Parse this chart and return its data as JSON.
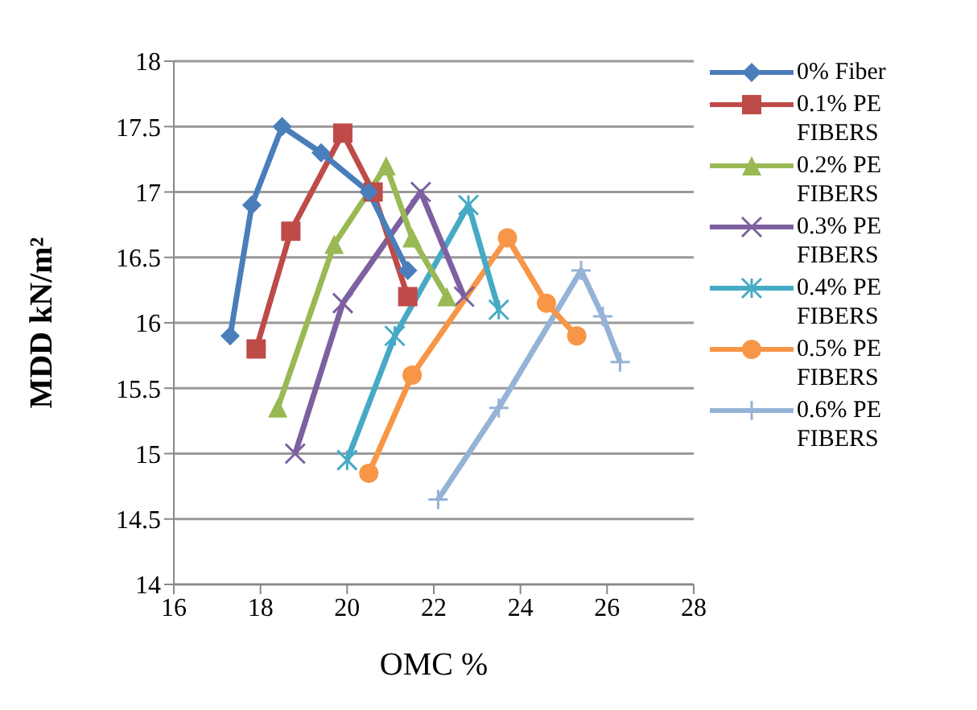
{
  "chart_data": {
    "type": "line",
    "xlabel": "OMC %",
    "ylabel": "MDD kN/m²",
    "xlim": [
      16,
      28
    ],
    "xticks": [
      16,
      18,
      20,
      22,
      24,
      26,
      28
    ],
    "ylim": [
      14,
      18
    ],
    "yticks": [
      14,
      14.5,
      15,
      15.5,
      16,
      16.5,
      17,
      17.5,
      18
    ],
    "grid": "y",
    "legend": "right",
    "series": [
      {
        "name": "0% Fiber",
        "color": "#4a7ebb",
        "marker": "diamond",
        "x": [
          17.3,
          17.8,
          18.5,
          19.4,
          20.5,
          21.4
        ],
        "values": [
          15.9,
          16.9,
          17.5,
          17.3,
          17.0,
          16.4
        ]
      },
      {
        "name": "0.1% PE FIBERS",
        "color": "#be4b48",
        "marker": "square",
        "x": [
          17.9,
          18.7,
          19.9,
          20.6,
          21.4
        ],
        "values": [
          15.8,
          16.7,
          17.45,
          17.0,
          16.2
        ]
      },
      {
        "name": "0.2% PE FIBERS",
        "color": "#98b954",
        "marker": "triangle",
        "x": [
          18.4,
          19.7,
          20.9,
          21.5,
          22.3
        ],
        "values": [
          15.35,
          16.6,
          17.2,
          16.65,
          16.2
        ]
      },
      {
        "name": "0.3% PE FIBERS",
        "color": "#7d60a0",
        "marker": "cross",
        "x": [
          18.8,
          19.9,
          21.7,
          22.7
        ],
        "values": [
          15.0,
          16.15,
          17.0,
          16.2
        ]
      },
      {
        "name": "0.4% PE FIBERS",
        "color": "#46aac5",
        "marker": "cross",
        "x": [
          20.0,
          21.1,
          22.8,
          23.5
        ],
        "values": [
          14.95,
          15.9,
          16.9,
          16.1
        ]
      },
      {
        "name": "0.5% PE FIBERS",
        "color": "#f79646",
        "marker": "circle",
        "x": [
          20.5,
          21.5,
          23.7,
          24.6,
          25.3
        ],
        "values": [
          14.85,
          15.6,
          16.65,
          16.15,
          15.9
        ]
      },
      {
        "name": "0.6% PE FIBERS",
        "color": "#95b3d7",
        "marker": "cross",
        "x": [
          22.1,
          23.5,
          25.4,
          25.9,
          26.3
        ],
        "values": [
          14.65,
          15.35,
          16.4,
          16.05,
          15.7
        ]
      }
    ]
  }
}
